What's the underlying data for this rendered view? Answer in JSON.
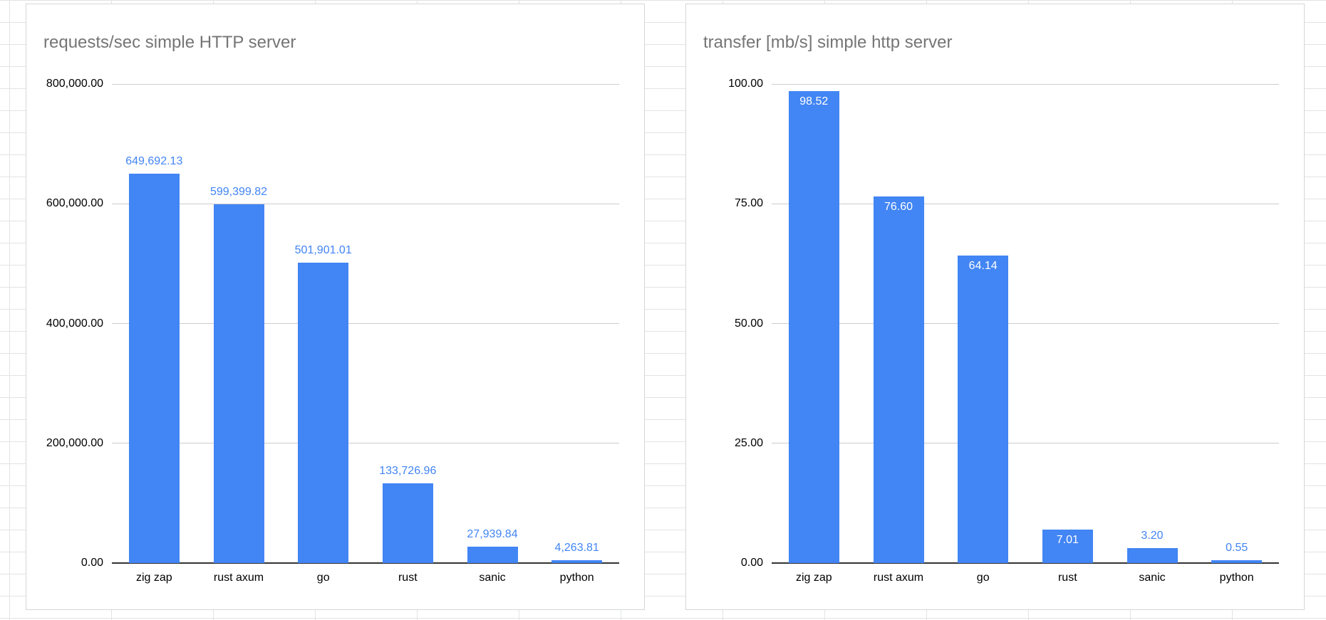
{
  "chart_data": [
    {
      "type": "bar",
      "title": "requests/sec simple HTTP server",
      "categories": [
        "zig zap",
        "rust axum",
        "go",
        "rust",
        "sanic",
        "python"
      ],
      "values": [
        649692.13,
        599399.82,
        501901.01,
        133726.96,
        27939.84,
        4263.81
      ],
      "value_labels": [
        "649,692.13",
        "599,399.82",
        "501,901.01",
        "133,726.96",
        "27,939.84",
        "4,263.81"
      ],
      "ylim": [
        0,
        800000
      ],
      "y_ticks": [
        0,
        200000,
        400000,
        600000,
        800000
      ],
      "y_tick_labels": [
        "0.00",
        "200,000.00",
        "400,000.00",
        "600,000.00",
        "800,000.00"
      ],
      "xlabel": "",
      "ylabel": "",
      "grid": "on",
      "legend": "none",
      "label_position": "above"
    },
    {
      "type": "bar",
      "title": "transfer [mb/s] simple http server",
      "categories": [
        "zig zap",
        "rust axum",
        "go",
        "rust",
        "sanic",
        "python"
      ],
      "values": [
        98.52,
        76.6,
        64.14,
        7.01,
        3.2,
        0.55
      ],
      "value_labels": [
        "98.52",
        "76.60",
        "64.14",
        "7.01",
        "3.20",
        "0.55"
      ],
      "ylim": [
        0,
        100
      ],
      "y_ticks": [
        0,
        25,
        50,
        75,
        100
      ],
      "y_tick_labels": [
        "0.00",
        "25.00",
        "50.00",
        "75.00",
        "100.00"
      ],
      "xlabel": "",
      "ylabel": "",
      "grid": "on",
      "legend": "none",
      "label_position": "inside_when_fits"
    }
  ],
  "colors": {
    "bar": "#4285f4",
    "label_text": "#4285f4",
    "label_inside_text": "#ffffff",
    "title_text": "#757575",
    "gridline": "#cccccc",
    "axis_line": "#333333"
  }
}
